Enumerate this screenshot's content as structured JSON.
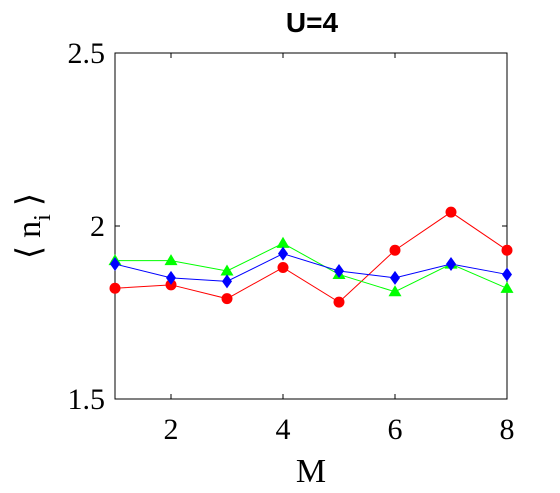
{
  "chart_data": {
    "type": "line",
    "title": "U=4",
    "xlabel": "M",
    "ylabel": "⟨ n_i ⟩",
    "ylabel_parts": {
      "open": "⟨",
      "base": "n",
      "sub": "i",
      "close": "⟩"
    },
    "xlim": [
      1,
      8
    ],
    "ylim": [
      1.5,
      2.5
    ],
    "xticks": [
      2,
      4,
      6,
      8
    ],
    "yticks": [
      1.5,
      2,
      2.5
    ],
    "ytick_labels": [
      "1.5",
      "2",
      "2.5"
    ],
    "grid": false,
    "x": [
      1,
      2,
      3,
      4,
      5,
      6,
      7,
      8
    ],
    "series": [
      {
        "color": "#ff0000",
        "marker": "circle",
        "values": [
          1.82,
          1.83,
          1.79,
          1.88,
          1.78,
          1.93,
          2.04,
          1.93
        ]
      },
      {
        "color": "#00ff00",
        "marker": "triangle",
        "values": [
          1.9,
          1.9,
          1.87,
          1.95,
          1.86,
          1.81,
          1.89,
          1.82
        ]
      },
      {
        "color": "#0000ff",
        "marker": "diamond",
        "values": [
          1.89,
          1.85,
          1.84,
          1.92,
          1.87,
          1.85,
          1.89,
          1.86
        ]
      }
    ]
  }
}
